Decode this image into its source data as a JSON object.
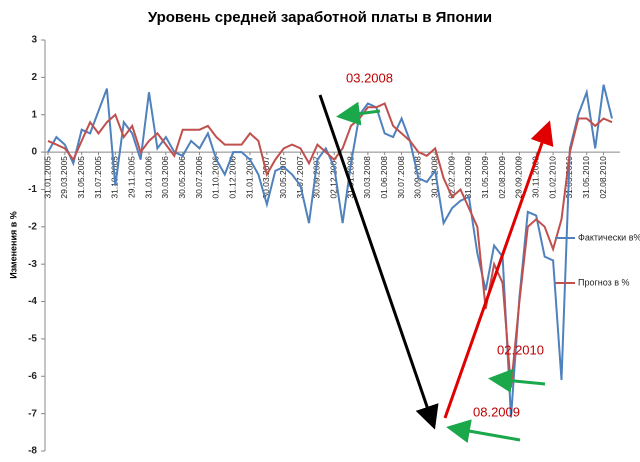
{
  "chart_data": {
    "type": "line",
    "title": "Уровень  средней заработной платы в Японии",
    "y_label": "Изменения в %",
    "categories": [
      "31.01.2005",
      null,
      "29.03.2005",
      null,
      "31.05.2005",
      null,
      "31.07.2005",
      null,
      "31.10.2005",
      null,
      "29.11.2005",
      null,
      "31.01.2006",
      null,
      "30.03.2006",
      null,
      "30.05.2006",
      null,
      "30.07.2006",
      null,
      "01.10.2006",
      null,
      "01.12.2006",
      null,
      "31.01.2007",
      null,
      "30.03.2007",
      null,
      "30.05.2007",
      null,
      "31.07.2007",
      null,
      "30.09.2007",
      null,
      "02.12.2007",
      null,
      "31.01.2008",
      null,
      "30.03.2008",
      null,
      "01.06.2008",
      null,
      "30.07.2008",
      null,
      "30.09.2008",
      null,
      "30.11.2008",
      null,
      "02.02.2009",
      null,
      "31.03.2009",
      null,
      "31.05.2009",
      null,
      "02.08.2009",
      null,
      "29.09.2009",
      null,
      "30.11.2009",
      null,
      "01.02.2010",
      null,
      "31.03.2010",
      null,
      "31.05.2010",
      null,
      "02.08.2010",
      null
    ],
    "series": [
      {
        "name": "Фактически в%",
        "color": "#4f81bd",
        "values": [
          0.0,
          0.4,
          0.2,
          -0.3,
          0.6,
          0.5,
          1.1,
          1.7,
          -0.9,
          0.8,
          0.5,
          -0.2,
          1.6,
          0.1,
          0.4,
          0.0,
          -0.1,
          0.3,
          0.1,
          0.5,
          -0.2,
          -0.6,
          0.0,
          0.0,
          -0.2,
          -0.6,
          -1.4,
          -0.5,
          -0.4,
          -0.6,
          -0.9,
          -1.9,
          -0.2,
          0.1,
          -0.4,
          -1.9,
          -0.3,
          1.0,
          1.3,
          1.2,
          0.5,
          0.4,
          0.9,
          0.3,
          -0.7,
          -0.8,
          -0.5,
          -1.9,
          -1.5,
          -1.3,
          -1.2,
          -2.7,
          -3.7,
          -2.5,
          -2.8,
          -7.1,
          -3.9,
          -1.6,
          -1.7,
          -2.8,
          -2.9,
          -6.1,
          0.1,
          1.0,
          1.6,
          0.1,
          1.8,
          0.9
        ]
      },
      {
        "name": "Прогноз в %",
        "color": "#c0504d",
        "values": [
          0.3,
          0.2,
          0.1,
          -0.2,
          0.3,
          0.8,
          0.5,
          0.8,
          1.0,
          0.4,
          0.7,
          0.0,
          0.3,
          0.5,
          0.2,
          -0.1,
          0.6,
          0.6,
          0.6,
          0.7,
          0.4,
          0.2,
          0.2,
          0.2,
          0.5,
          0.3,
          -0.6,
          -0.2,
          0.1,
          0.2,
          0.1,
          -0.3,
          0.2,
          0.0,
          -0.2,
          0.1,
          0.7,
          0.9,
          1.2,
          1.2,
          1.3,
          0.7,
          0.5,
          0.3,
          0.0,
          -0.1,
          0.1,
          -0.7,
          -1.2,
          -1.0,
          -1.5,
          -2.0,
          -4.2,
          -3.0,
          -3.5,
          -6.3,
          -4.0,
          -2.0,
          -1.8,
          -2.0,
          -2.6,
          -1.8,
          0.0,
          0.9,
          0.9,
          0.7,
          0.9,
          0.8
        ]
      }
    ],
    "ylim": [
      -8,
      3
    ],
    "yticks": [
      -8,
      -7,
      -6,
      -5,
      -4,
      -3,
      -2,
      -1,
      0,
      1,
      2,
      3
    ],
    "grid": false,
    "legend": "right",
    "annotations": [
      "03.2008",
      "02.2010",
      "08.2009"
    ]
  }
}
